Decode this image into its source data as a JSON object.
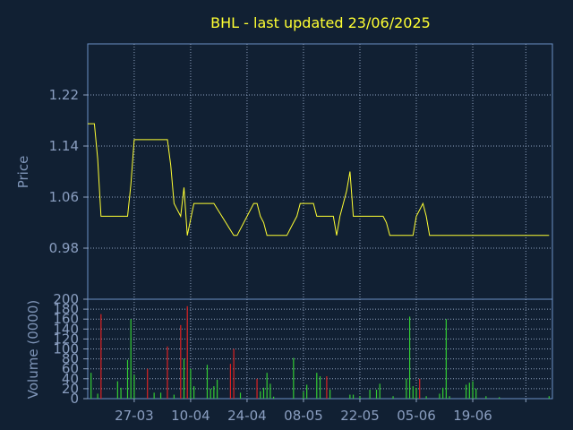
{
  "chart_data": [
    {
      "type": "line",
      "title": "BHL - last updated 23/06/2025",
      "ylabel": "Price",
      "ylim": [
        0.9,
        1.3
      ],
      "yticks": [
        0.98,
        1.06,
        1.14,
        1.22
      ],
      "ytick_labels": [
        "0.98",
        "1.06",
        "1.14",
        "1.22"
      ],
      "xlim": [
        0,
        140
      ],
      "grid": true,
      "colors": {
        "line": "#ffff33",
        "title": "#ffff33"
      },
      "x": [
        0,
        2,
        3,
        4,
        11,
        12,
        13,
        14,
        22,
        23,
        24,
        25,
        26,
        27,
        28,
        29,
        30,
        32,
        33,
        34,
        36,
        37,
        38,
        44,
        45,
        50,
        51,
        52,
        53,
        54,
        55,
        56,
        60,
        61,
        62,
        63,
        64,
        68,
        69,
        70,
        71,
        72,
        74,
        75,
        76,
        78,
        79,
        80,
        85,
        86,
        88,
        89,
        90,
        91,
        92,
        93,
        98,
        99,
        101,
        102,
        103,
        104,
        105,
        106,
        108,
        109,
        120,
        121,
        139
      ],
      "y": [
        1.175,
        1.175,
        1.12,
        1.03,
        1.03,
        1.03,
        1.08,
        1.15,
        1.15,
        1.15,
        1.15,
        1.11,
        1.05,
        1.04,
        1.03,
        1.075,
        1.0,
        1.05,
        1.05,
        1.05,
        1.05,
        1.05,
        1.05,
        1.0,
        1.0,
        1.05,
        1.05,
        1.03,
        1.02,
        1.0,
        1.0,
        1.0,
        1.0,
        1.01,
        1.02,
        1.03,
        1.05,
        1.05,
        1.03,
        1.03,
        1.03,
        1.03,
        1.03,
        1.0,
        1.03,
        1.07,
        1.1,
        1.03,
        1.03,
        1.03,
        1.03,
        1.03,
        1.02,
        1.0,
        1.0,
        1.0,
        1.0,
        1.03,
        1.05,
        1.03,
        1.0,
        1.0,
        1.0,
        1.0,
        1.0,
        1.0,
        1.0,
        1.0,
        1.0
      ]
    },
    {
      "type": "bar",
      "ylabel": "Volume (0000)",
      "ylim": [
        0,
        200
      ],
      "yticks": [
        0,
        20,
        40,
        60,
        80,
        100,
        120,
        140,
        160,
        180,
        200
      ],
      "ytick_labels": [
        "0",
        "20",
        "40",
        "60",
        "80",
        "100",
        "120",
        "140",
        "160",
        "180",
        "200"
      ],
      "xlim": [
        0,
        140
      ],
      "xtick_positions": [
        14,
        31,
        48,
        65,
        82,
        99,
        116,
        132
      ],
      "xtick_labels": [
        "27-03",
        "10-04",
        "24-04",
        "08-05",
        "22-05",
        "05-06",
        "19-06",
        ""
      ],
      "grid": true,
      "colors": {
        "up": "#33cc33",
        "down": "#dd2222"
      },
      "bars": [
        {
          "x": 1,
          "v": 52,
          "dir": "up"
        },
        {
          "x": 3,
          "v": 10,
          "dir": "up"
        },
        {
          "x": 4,
          "v": 170,
          "dir": "down"
        },
        {
          "x": 9,
          "v": 35,
          "dir": "up"
        },
        {
          "x": 10,
          "v": 22,
          "dir": "up"
        },
        {
          "x": 12,
          "v": 78,
          "dir": "up"
        },
        {
          "x": 13,
          "v": 160,
          "dir": "up"
        },
        {
          "x": 14,
          "v": 48,
          "dir": "up"
        },
        {
          "x": 18,
          "v": 60,
          "dir": "down"
        },
        {
          "x": 20,
          "v": 12,
          "dir": "up"
        },
        {
          "x": 22,
          "v": 12,
          "dir": "up"
        },
        {
          "x": 24,
          "v": 105,
          "dir": "down"
        },
        {
          "x": 26,
          "v": 8,
          "dir": "up"
        },
        {
          "x": 28,
          "v": 148,
          "dir": "down"
        },
        {
          "x": 29,
          "v": 80,
          "dir": "up"
        },
        {
          "x": 30,
          "v": 186,
          "dir": "down"
        },
        {
          "x": 31,
          "v": 60,
          "dir": "up"
        },
        {
          "x": 32,
          "v": 25,
          "dir": "up"
        },
        {
          "x": 36,
          "v": 68,
          "dir": "up"
        },
        {
          "x": 37,
          "v": 20,
          "dir": "up"
        },
        {
          "x": 38,
          "v": 25,
          "dir": "up"
        },
        {
          "x": 39,
          "v": 38,
          "dir": "up"
        },
        {
          "x": 43,
          "v": 70,
          "dir": "down"
        },
        {
          "x": 44,
          "v": 100,
          "dir": "down"
        },
        {
          "x": 46,
          "v": 12,
          "dir": "up"
        },
        {
          "x": 51,
          "v": 40,
          "dir": "down"
        },
        {
          "x": 52,
          "v": 15,
          "dir": "up"
        },
        {
          "x": 53,
          "v": 22,
          "dir": "up"
        },
        {
          "x": 54,
          "v": 52,
          "dir": "up"
        },
        {
          "x": 55,
          "v": 30,
          "dir": "up"
        },
        {
          "x": 56,
          "v": 4,
          "dir": "up"
        },
        {
          "x": 62,
          "v": 82,
          "dir": "up"
        },
        {
          "x": 65,
          "v": 14,
          "dir": "up"
        },
        {
          "x": 66,
          "v": 28,
          "dir": "up"
        },
        {
          "x": 69,
          "v": 52,
          "dir": "up"
        },
        {
          "x": 70,
          "v": 45,
          "dir": "up"
        },
        {
          "x": 72,
          "v": 45,
          "dir": "down"
        },
        {
          "x": 73,
          "v": 18,
          "dir": "up"
        },
        {
          "x": 79,
          "v": 8,
          "dir": "up"
        },
        {
          "x": 80,
          "v": 8,
          "dir": "up"
        },
        {
          "x": 82,
          "v": 5,
          "dir": "up"
        },
        {
          "x": 85,
          "v": 18,
          "dir": "up"
        },
        {
          "x": 87,
          "v": 18,
          "dir": "up"
        },
        {
          "x": 88,
          "v": 30,
          "dir": "up"
        },
        {
          "x": 92,
          "v": 5,
          "dir": "up"
        },
        {
          "x": 96,
          "v": 40,
          "dir": "up"
        },
        {
          "x": 97,
          "v": 165,
          "dir": "up"
        },
        {
          "x": 98,
          "v": 25,
          "dir": "up"
        },
        {
          "x": 99,
          "v": 22,
          "dir": "up"
        },
        {
          "x": 100,
          "v": 40,
          "dir": "down"
        },
        {
          "x": 102,
          "v": 5,
          "dir": "up"
        },
        {
          "x": 106,
          "v": 10,
          "dir": "up"
        },
        {
          "x": 107,
          "v": 22,
          "dir": "up"
        },
        {
          "x": 108,
          "v": 160,
          "dir": "up"
        },
        {
          "x": 109,
          "v": 5,
          "dir": "up"
        },
        {
          "x": 114,
          "v": 28,
          "dir": "up"
        },
        {
          "x": 115,
          "v": 32,
          "dir": "up"
        },
        {
          "x": 116,
          "v": 35,
          "dir": "up"
        },
        {
          "x": 117,
          "v": 20,
          "dir": "up"
        },
        {
          "x": 120,
          "v": 5,
          "dir": "up"
        },
        {
          "x": 124,
          "v": 3,
          "dir": "up"
        },
        {
          "x": 139,
          "v": 5,
          "dir": "up"
        }
      ]
    }
  ]
}
